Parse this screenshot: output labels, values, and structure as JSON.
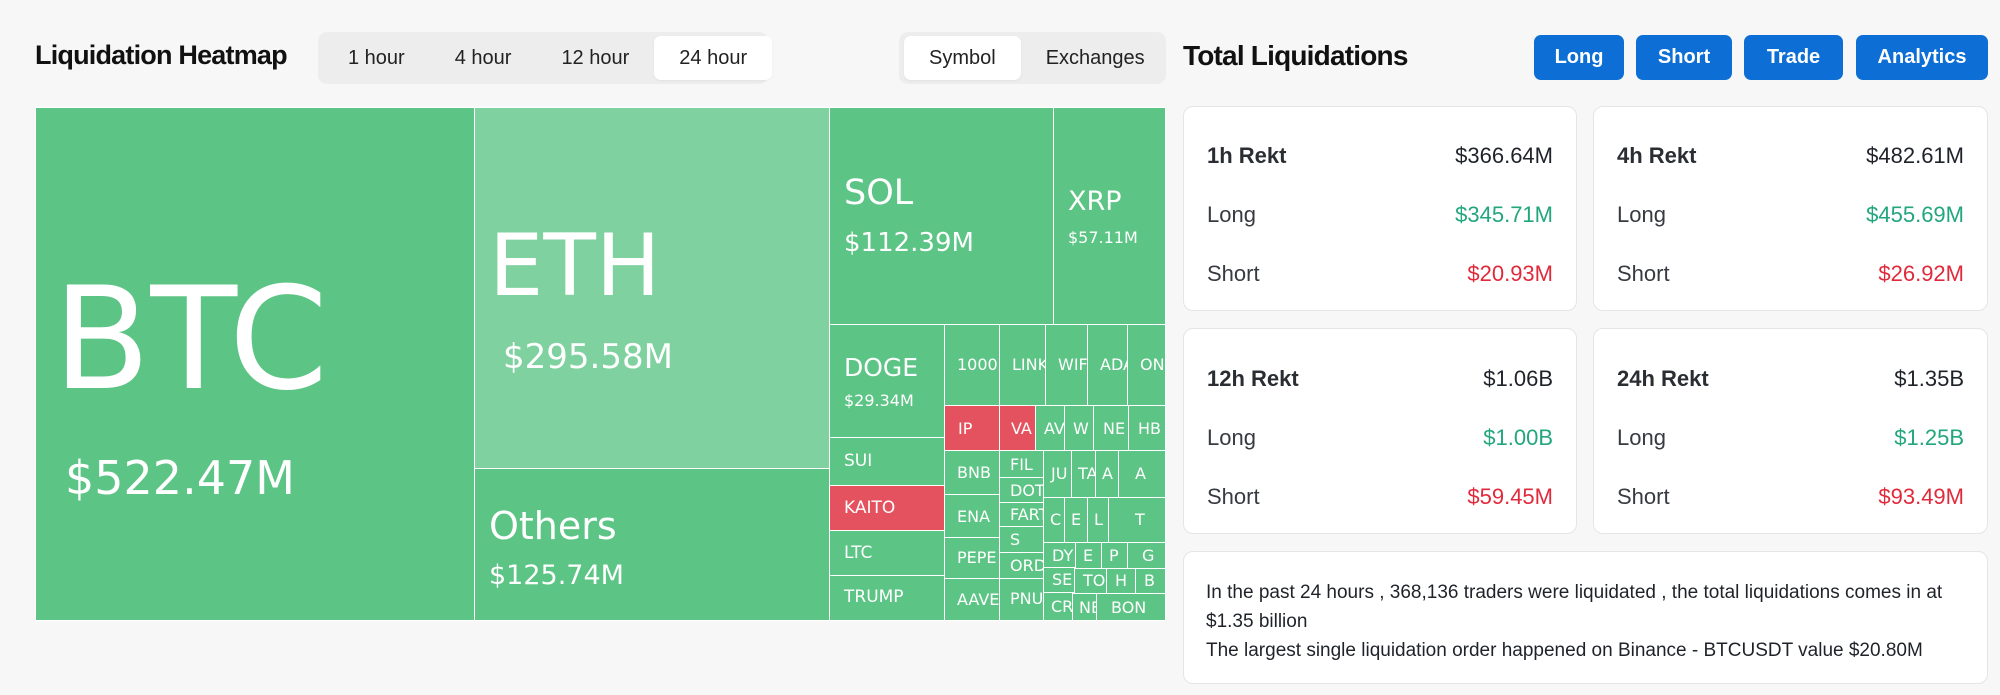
{
  "header": {
    "title": "Liquidation Heatmap",
    "time_filters": [
      "1 hour",
      "4 hour",
      "12 hour",
      "24 hour"
    ],
    "active_time_filter": "24 hour",
    "view_filters": [
      "Symbol",
      "Exchanges"
    ],
    "active_view_filter": "Symbol"
  },
  "right_header": {
    "title": "Total Liquidations",
    "buttons": [
      "Long",
      "Short",
      "Trade",
      "Analytics"
    ]
  },
  "colors": {
    "up": "#5cc484",
    "up_light": "#7fd29f",
    "down": "#e5525f",
    "accent": "#0d6fd6",
    "long_text": "#22a67d",
    "short_text": "#e02a3b"
  },
  "heatmap": {
    "tiles": {
      "btc": {
        "symbol": "BTC",
        "value": "$522.47M"
      },
      "eth": {
        "symbol": "ETH",
        "value": "$295.58M"
      },
      "others": {
        "symbol": "Others",
        "value": "$125.74M"
      },
      "sol": {
        "symbol": "SOL",
        "value": "$112.39M"
      },
      "xrp": {
        "symbol": "XRP",
        "value": "$57.11M"
      },
      "doge": {
        "symbol": "DOGE",
        "value": "$29.34M"
      },
      "sui": {
        "symbol": "SUI"
      },
      "kaito": {
        "symbol": "KAITO"
      },
      "ltc": {
        "symbol": "LTC"
      },
      "trump": {
        "symbol": "TRUMP"
      }
    },
    "small_tiles": [
      "1000",
      "LINK",
      "WIF",
      "ADA",
      "ONDO",
      "IP",
      "VA",
      "AV",
      "W",
      "NE",
      "HB",
      "BNB",
      "FIL",
      "JU",
      "TA",
      "A",
      "A",
      "DOT",
      "C",
      "E",
      "L",
      "T",
      "ENA",
      "FART",
      "S",
      "DY",
      "E",
      "P",
      "G",
      "PEPE",
      "ORD",
      "SE",
      "TO",
      "H",
      "B",
      "AAVE",
      "PNU",
      "CR",
      "NE",
      "BON"
    ]
  },
  "rekt_cards": [
    {
      "title": "1h Rekt",
      "total": "$366.64M",
      "long_label": "Long",
      "long": "$345.71M",
      "short_label": "Short",
      "short": "$20.93M"
    },
    {
      "title": "4h Rekt",
      "total": "$482.61M",
      "long_label": "Long",
      "long": "$455.69M",
      "short_label": "Short",
      "short": "$26.92M"
    },
    {
      "title": "12h Rekt",
      "total": "$1.06B",
      "long_label": "Long",
      "long": "$1.00B",
      "short_label": "Short",
      "short": "$59.45M"
    },
    {
      "title": "24h Rekt",
      "total": "$1.35B",
      "long_label": "Long",
      "long": "$1.25B",
      "short_label": "Short",
      "short": "$93.49M"
    }
  ],
  "summary": {
    "line1": "In the past 24 hours , 368,136 traders were liquidated , the total liquidations comes in at $1.35 billion",
    "line2": "The largest single liquidation order happened on Binance - BTCUSDT value $20.80M"
  }
}
